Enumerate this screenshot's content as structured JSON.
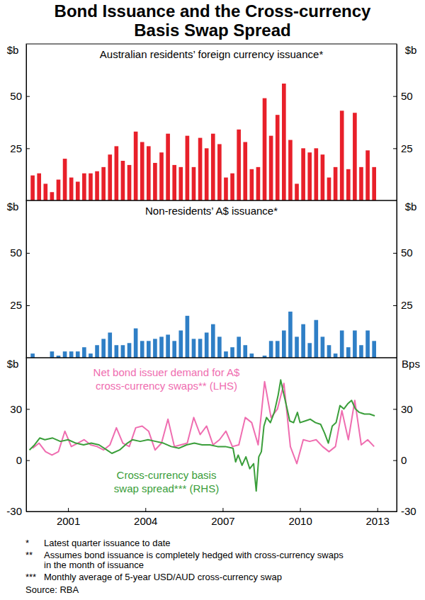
{
  "title": [
    "Bond Issuance and the Cross-currency",
    "Basis Swap Spread"
  ],
  "notes": [
    {
      "mark": "*",
      "text": [
        "Latest quarter issuance to date"
      ]
    },
    {
      "mark": "**",
      "text": [
        "Assumes bond issuance is completely hedged with cross-currency swaps",
        "in the month of issuance"
      ]
    },
    {
      "mark": "***",
      "text": [
        "Monthly average of 5-year USD/AUD cross-currency swap"
      ]
    }
  ],
  "source": "Source: RBA",
  "chart_data": [
    {
      "type": "bar",
      "title": "Australian residents’ foreign currency issuance*",
      "ylabel": "$b",
      "color": "#e8202a",
      "grid": false,
      "tick_labels": "y",
      "xlim": [
        1999.875,
        2014.25
      ],
      "ylim": [
        0,
        75
      ],
      "yticks": [
        25,
        50
      ],
      "x": [
        2000.125,
        2000.375,
        2000.625,
        2000.875,
        2001.125,
        2001.375,
        2001.625,
        2001.875,
        2002.125,
        2002.375,
        2002.625,
        2002.875,
        2003.125,
        2003.375,
        2003.625,
        2003.875,
        2004.125,
        2004.375,
        2004.625,
        2004.875,
        2005.125,
        2005.375,
        2005.625,
        2005.875,
        2006.125,
        2006.375,
        2006.625,
        2006.875,
        2007.125,
        2007.375,
        2007.625,
        2007.875,
        2008.125,
        2008.375,
        2008.625,
        2008.875,
        2009.125,
        2009.375,
        2009.625,
        2009.875,
        2010.125,
        2010.375,
        2010.625,
        2010.875,
        2011.125,
        2011.375,
        2011.625,
        2011.875,
        2012.125,
        2012.375,
        2012.625,
        2012.875,
        2013.125,
        2013.375
      ],
      "values": [
        12,
        13,
        8,
        4,
        10,
        20,
        11,
        9,
        13,
        13,
        14,
        16,
        22,
        26,
        19,
        17,
        33,
        28,
        26,
        18,
        23,
        32,
        17,
        16,
        31,
        16,
        30,
        25,
        32,
        27,
        11,
        13,
        34,
        28,
        15,
        16,
        49,
        31,
        41,
        56,
        29,
        8,
        25,
        23,
        25,
        22,
        11,
        16,
        43,
        15,
        42,
        16,
        24,
        16
      ]
    },
    {
      "type": "bar",
      "title": "Non-residents’ A$ issuance*",
      "ylabel": "$b",
      "color": "#2f7fc6",
      "grid": false,
      "tick_labels": "y",
      "xlim": [
        1999.875,
        2014.25
      ],
      "ylim": [
        0,
        75
      ],
      "yticks": [
        25,
        50
      ],
      "x": [
        2000.125,
        2000.375,
        2000.625,
        2000.875,
        2001.125,
        2001.375,
        2001.625,
        2001.875,
        2002.125,
        2002.375,
        2002.625,
        2002.875,
        2003.125,
        2003.375,
        2003.625,
        2003.875,
        2004.125,
        2004.375,
        2004.625,
        2004.875,
        2005.125,
        2005.375,
        2005.625,
        2005.875,
        2006.125,
        2006.375,
        2006.625,
        2006.875,
        2007.125,
        2007.375,
        2007.625,
        2007.875,
        2008.125,
        2008.375,
        2008.625,
        2008.875,
        2009.125,
        2009.375,
        2009.625,
        2009.875,
        2010.125,
        2010.375,
        2010.625,
        2010.875,
        2011.125,
        2011.375,
        2011.625,
        2011.875,
        2012.125,
        2012.375,
        2012.625,
        2012.875,
        2013.125,
        2013.375
      ],
      "values": [
        2,
        0,
        0,
        3,
        1,
        3,
        3,
        3,
        5,
        2,
        6,
        9,
        12,
        6,
        6,
        7,
        14,
        8,
        8,
        9,
        10,
        11,
        8,
        13,
        20,
        9,
        9,
        12,
        16,
        10,
        3,
        5,
        10,
        6,
        2,
        0,
        1,
        8,
        8,
        13,
        22,
        10,
        16,
        7,
        18,
        10,
        6,
        2,
        13,
        5,
        13,
        6,
        13,
        8
      ]
    },
    {
      "type": "line",
      "ylabel": "$b",
      "y2label": "Bps",
      "grid": false,
      "xlim": [
        1999.875,
        2014.25
      ],
      "xticks": [
        {
          "value": 2001.5,
          "label": "2001"
        },
        {
          "value": 2004.5,
          "label": "2004"
        },
        {
          "value": 2007.5,
          "label": "2007"
        },
        {
          "value": 2010.5,
          "label": "2010"
        },
        {
          "value": 2013.5,
          "label": "2013"
        }
      ],
      "ylim": [
        -30,
        60
      ],
      "yticks": [
        -30,
        0,
        30
      ],
      "y2lim": [
        -30,
        60
      ],
      "y2ticks": [
        -30,
        0,
        30
      ],
      "series": [
        {
          "name": "Net bond issuer demand for A$ cross-currency swaps** (LHS)",
          "color": "#ef6db0",
          "x": [
            2000.125,
            2000.375,
            2000.625,
            2000.875,
            2001.125,
            2001.375,
            2001.625,
            2001.875,
            2002.125,
            2002.375,
            2002.625,
            2002.875,
            2003.125,
            2003.375,
            2003.625,
            2003.875,
            2004.125,
            2004.375,
            2004.625,
            2004.875,
            2005.125,
            2005.375,
            2005.625,
            2005.875,
            2006.125,
            2006.375,
            2006.625,
            2006.875,
            2007.125,
            2007.375,
            2007.625,
            2007.875,
            2008.125,
            2008.375,
            2008.625,
            2008.875,
            2009.125,
            2009.375,
            2009.625,
            2009.875,
            2010.125,
            2010.375,
            2010.625,
            2010.875,
            2011.125,
            2011.375,
            2011.625,
            2011.875,
            2012.125,
            2012.375,
            2012.625,
            2012.875,
            2013.125,
            2013.375
          ],
          "values": [
            7,
            10,
            5,
            3,
            5,
            17,
            8,
            10,
            12,
            9,
            8,
            6,
            9,
            19,
            10,
            8,
            19,
            20,
            17,
            6,
            10,
            24,
            8,
            9,
            10,
            25,
            15,
            20,
            9,
            12,
            17,
            8,
            9,
            25,
            22,
            9,
            46,
            25,
            30,
            45,
            8,
            -2,
            12,
            11,
            12,
            8,
            5,
            8,
            29,
            12,
            35,
            9,
            12,
            8
          ]
        },
        {
          "name": "Cross-currency basis swap spread*** (RHS)",
          "color": "#3a9e3a",
          "axis": "y2",
          "x": [
            2000.0,
            2000.2,
            2000.4,
            2000.6,
            2000.9,
            2001.2,
            2001.5,
            2001.8,
            2002.1,
            2002.4,
            2002.7,
            2003.0,
            2003.2,
            2003.5,
            2003.8,
            2004.0,
            2004.3,
            2004.6,
            2004.9,
            2005.2,
            2005.5,
            2005.8,
            2006.1,
            2006.4,
            2006.7,
            2007.0,
            2007.3,
            2007.6,
            2007.9,
            2008.0,
            2008.1,
            2008.25,
            2008.4,
            2008.55,
            2008.7,
            2008.8,
            2008.9,
            2009.0,
            2009.1,
            2009.2,
            2009.35,
            2009.5,
            2009.65,
            2009.75,
            2009.85,
            2010.0,
            2010.1,
            2010.25,
            2010.4,
            2010.5,
            2010.7,
            2010.9,
            2011.1,
            2011.3,
            2011.45,
            2011.6,
            2011.75,
            2011.9,
            2012.05,
            2012.2,
            2012.35,
            2012.5,
            2012.65,
            2012.8,
            2013.0,
            2013.2,
            2013.4
          ],
          "values": [
            6,
            9,
            13,
            12,
            13,
            11,
            12,
            10,
            9,
            10,
            9,
            6,
            4,
            6,
            10,
            12,
            11,
            12,
            11,
            10,
            8,
            7,
            9,
            10,
            9,
            9,
            8,
            8,
            7,
            -1,
            3,
            -3,
            2,
            -5,
            -2,
            -18,
            2,
            5,
            20,
            25,
            22,
            28,
            38,
            47,
            40,
            30,
            23,
            22,
            28,
            22,
            23,
            24,
            22,
            21,
            16,
            10,
            20,
            22,
            32,
            30,
            33,
            35,
            30,
            28,
            27,
            27,
            26
          ]
        }
      ]
    }
  ]
}
